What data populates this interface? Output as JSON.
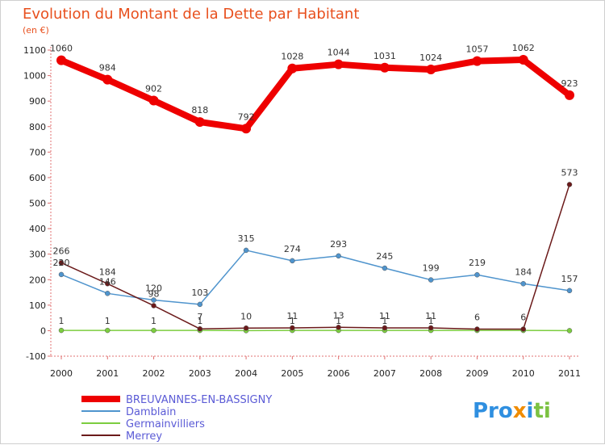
{
  "chart_data": {
    "type": "line",
    "title": "Evolution du Montant de la Dette par Habitant",
    "subtitle": "(en €)",
    "x": [
      "2000",
      "2001",
      "2002",
      "2003",
      "2004",
      "2005",
      "2006",
      "2007",
      "2008",
      "2009",
      "2010",
      "2011"
    ],
    "ylim": [
      -100,
      1100
    ],
    "yticks": [
      -100,
      0,
      100,
      200,
      300,
      400,
      500,
      600,
      700,
      800,
      900,
      1000,
      1100
    ],
    "grid": false,
    "legend_placement": "bottom-left",
    "series": [
      {
        "name": "BREUVANNES-EN-BASSIGNY",
        "color": "#ee0000",
        "values": [
          1060,
          984,
          902,
          818,
          792,
          1028,
          1044,
          1031,
          1024,
          1057,
          1062,
          923
        ]
      },
      {
        "name": "Damblain",
        "color": "#4f94cd",
        "values": [
          220,
          146,
          120,
          103,
          315,
          274,
          293,
          245,
          199,
          219,
          184,
          157
        ]
      },
      {
        "name": "Germainvilliers",
        "color": "#7ccd3f",
        "values": [
          1,
          1,
          1,
          1,
          0,
          1,
          1,
          1,
          1,
          1,
          1,
          0
        ]
      },
      {
        "name": "Merrey",
        "color": "#6b1a1a",
        "values": [
          266,
          184,
          98,
          7,
          10,
          11,
          13,
          11,
          11,
          6,
          6,
          573
        ]
      }
    ],
    "data_labels": [
      [
        "1060",
        "984",
        "902",
        "818",
        "792",
        "1028",
        "1044",
        "1031",
        "1024",
        "1057",
        "1062",
        "923"
      ],
      [
        "220",
        "146",
        "120",
        "103",
        "315",
        "274",
        "293",
        "245",
        "199",
        "219",
        "184",
        "157"
      ],
      [
        "1",
        "1",
        "1",
        "1",
        "",
        "1",
        "1",
        "1",
        "1",
        "",
        "",
        ""
      ],
      [
        "266",
        "184",
        "98",
        "7",
        "10",
        "11",
        "13",
        "11",
        "11",
        "6",
        "6",
        "573"
      ]
    ]
  },
  "logo": {
    "text": "Proxiti"
  }
}
